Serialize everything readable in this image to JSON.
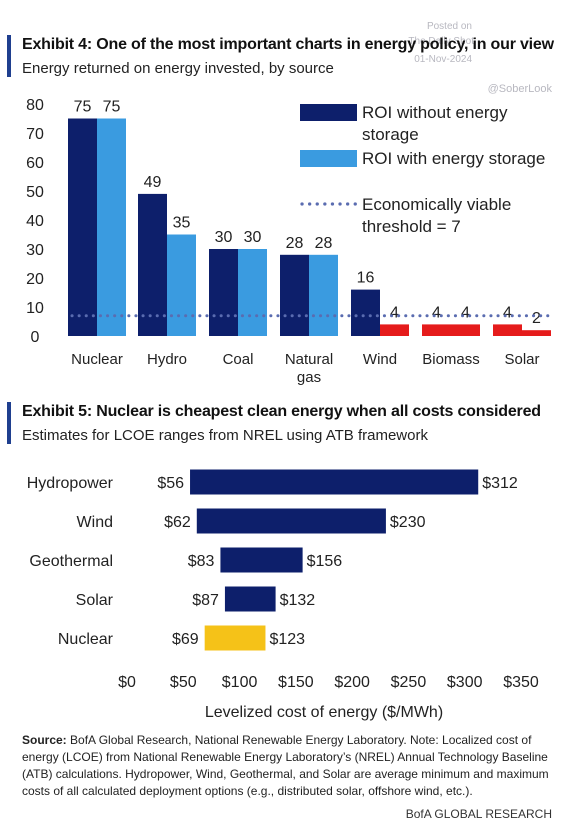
{
  "watermark": {
    "posted_on": "Posted on",
    "site": "The Daily Shot",
    "date": "01-Nov-2024",
    "handle": "@SoberLook"
  },
  "exhibit4": {
    "title": "Exhibit 4: One of the most important charts in energy policy, in our view",
    "subtitle": "Energy returned on energy invested, by source"
  },
  "exhibit5": {
    "title": "Exhibit 5: Nuclear is cheapest clean energy when all costs considered",
    "subtitle": "Estimates for LCOE ranges from NREL using ATB framework"
  },
  "source": {
    "label": "Source:",
    "text": "BofA Global Research, National Renewable Energy Laboratory. Note: Localized cost of energy (LCOE) from National Renewable Energy Laboratory’s (NREL) Annual Technology Baseline (ATB) calculations. Hydropower, Wind, Geothermal, and Solar are average minimum and maximum costs of all calculated deployment options (e.g., distributed solar, offshore wind, etc.)."
  },
  "footer": "BofA GLOBAL RESEARCH",
  "colors": {
    "navy": "#0d1f6b",
    "light_blue": "#3a9be0",
    "red": "#e51b1b",
    "threshold": "#5a6cb0",
    "nuclear_gold": "#f5c218",
    "accent_bar": "#1f3f8f"
  },
  "chart_data": [
    {
      "type": "bar",
      "categories": [
        "Nuclear",
        "Hydro",
        "Coal",
        "Natural gas",
        "Wind",
        "Biomass",
        "Solar"
      ],
      "category_lines": [
        [
          "Nuclear"
        ],
        [
          "Hydro"
        ],
        [
          "Coal"
        ],
        [
          "Natural",
          "gas"
        ],
        [
          "Wind"
        ],
        [
          "Biomass"
        ],
        [
          "Solar"
        ]
      ],
      "series": [
        {
          "name": "ROI without energy storage",
          "values": [
            75,
            49,
            30,
            28,
            16,
            4,
            4
          ]
        },
        {
          "name": "ROI with energy storage",
          "values": [
            75,
            35,
            30,
            28,
            4,
            4,
            2
          ]
        }
      ],
      "threshold": {
        "name": "Economically viable threshold = 7",
        "value": 7
      },
      "legend": [
        {
          "lines": [
            "ROI without energy",
            "storage"
          ],
          "kind": "bar",
          "series": 0
        },
        {
          "lines": [
            "ROI with energy storage"
          ],
          "kind": "bar",
          "series": 1
        },
        {
          "lines": [
            "Economically viable",
            "threshold = 7"
          ],
          "kind": "dots"
        }
      ],
      "red_categories": [
        "Wind",
        "Biomass",
        "Solar"
      ],
      "yticks": [
        0,
        10,
        20,
        30,
        40,
        50,
        60,
        70,
        80
      ],
      "ylim": [
        0,
        80
      ],
      "legend_position": "top-right",
      "grid": false
    },
    {
      "type": "bar",
      "orientation": "horizontal-range",
      "categories": [
        "Hydropower",
        "Wind",
        "Geothermal",
        "Solar",
        "Nuclear"
      ],
      "min": [
        56,
        62,
        83,
        87,
        69
      ],
      "max": [
        312,
        230,
        156,
        132,
        123
      ],
      "min_labels": [
        "$56",
        "$62",
        "$83",
        "$87",
        "$69"
      ],
      "max_labels": [
        "$312",
        "$230",
        "$156",
        "$132",
        "$123"
      ],
      "xticks": [
        "$0",
        "$50",
        "$100",
        "$150",
        "$200",
        "$250",
        "$300",
        "$350"
      ],
      "xlim": [
        0,
        350
      ],
      "xlabel": "Levelized cost of energy ($/MWh)",
      "highlight": "Nuclear",
      "grid": false
    }
  ]
}
